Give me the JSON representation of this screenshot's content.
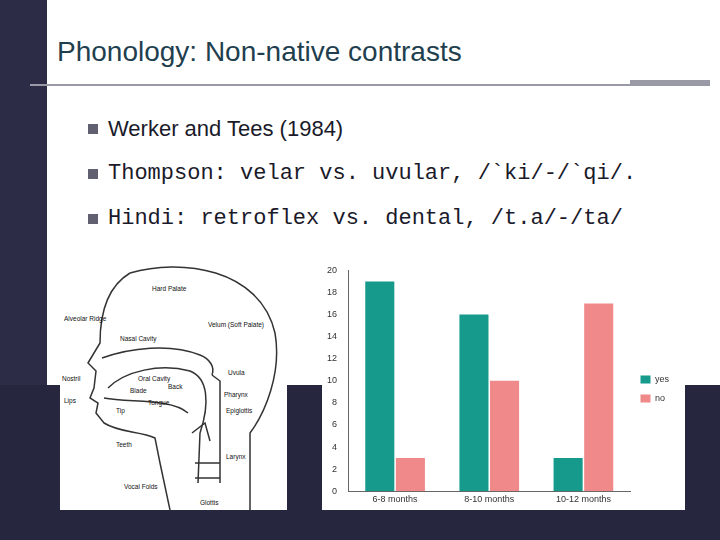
{
  "slide": {
    "title": "Phonology: Non-native contrasts",
    "bullets": [
      "Werker and Tees (1984)",
      "Thompson: velar vs. uvular, /`ki/-/`qi/.",
      "Hindi: retroflex vs. dental, /t.a/-/ta/"
    ]
  },
  "diagram": {
    "labels": [
      "Alveolar Ridge",
      "Hard Palate",
      "Nasal Cavity",
      "Velum (Soft Palate)",
      "Uvula",
      "Nostril",
      "Oral Cavity",
      "Lips",
      "Tongue",
      "Blade",
      "Back",
      "Tip",
      "Pharynx",
      "Epiglottis",
      "Teeth",
      "Larynx",
      "Vocal Folds",
      "Glottis"
    ]
  },
  "chart_data": {
    "type": "bar",
    "categories": [
      "6-8 months",
      "8-10 months",
      "10-12 months"
    ],
    "series": [
      {
        "name": "yes",
        "color": "#159a8c",
        "values": [
          19,
          16,
          3
        ]
      },
      {
        "name": "no",
        "color": "#f08a8a",
        "values": [
          3,
          10,
          17
        ]
      }
    ],
    "ylim": [
      0,
      20
    ],
    "yticks": [
      0,
      2,
      4,
      6,
      8,
      10,
      12,
      14,
      16,
      18,
      20
    ],
    "grid": false,
    "legend": "right"
  }
}
